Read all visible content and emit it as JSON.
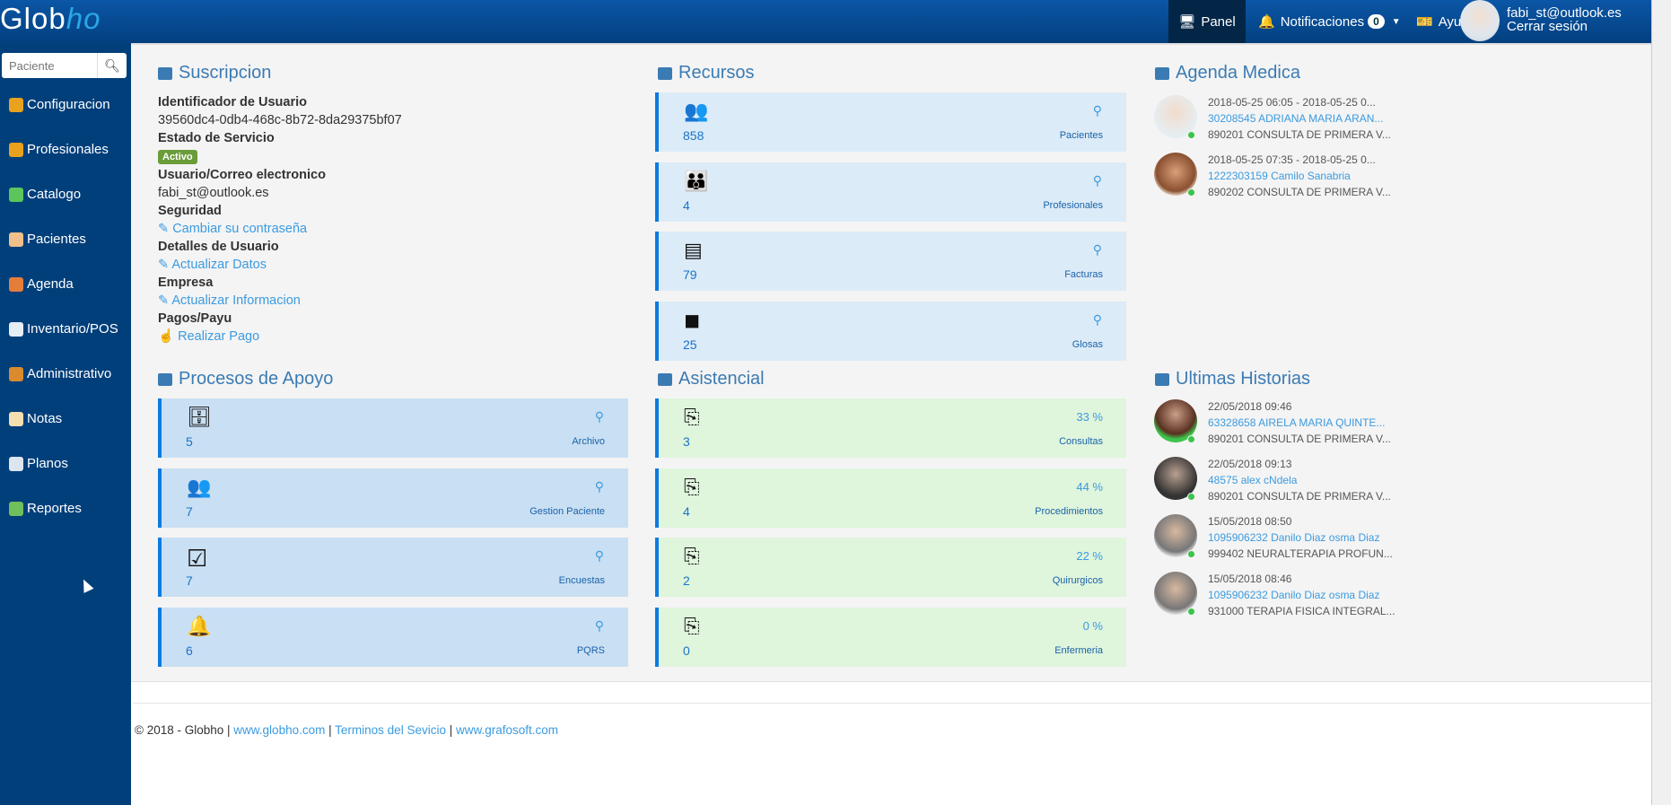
{
  "header": {
    "logo_text": "Globho",
    "nav": {
      "panel": "Panel",
      "notifications": "Notificaciones",
      "notifications_count": "0",
      "help": "Ayuda"
    },
    "user": {
      "email": "fabi_st@outlook.es",
      "logout": "Cerrar sesión"
    }
  },
  "sidebar": {
    "search_placeholder": "Paciente",
    "items": [
      {
        "label": "Configuracion",
        "icon": "gear-icon",
        "color": "#e8a21e"
      },
      {
        "label": "Profesionales",
        "icon": "users-icon",
        "color": "#e8a21e"
      },
      {
        "label": "Catalogo",
        "icon": "nodes-icon",
        "color": "#5cc65a"
      },
      {
        "label": "Pacientes",
        "icon": "user-icon",
        "color": "#f0c08a"
      },
      {
        "label": "Agenda",
        "icon": "calendar-icon",
        "color": "#e57d3a"
      },
      {
        "label": "Inventario/POS",
        "icon": "cart-icon",
        "color": "#e6eef5"
      },
      {
        "label": "Administrativo",
        "icon": "briefcase-icon",
        "color": "#d98b2e"
      },
      {
        "label": "Notas",
        "icon": "note-icon",
        "color": "#f3dfb0"
      },
      {
        "label": "Planos",
        "icon": "document-check-icon",
        "color": "#dde6ee"
      },
      {
        "label": "Reportes",
        "icon": "printer-icon",
        "color": "#6fbf5a"
      }
    ]
  },
  "suscripcion": {
    "title": "Suscripcion",
    "id_label": "Identificador de Usuario",
    "id_value": "39560dc4-0db4-468c-8b72-8da29375bf07",
    "estado_label": "Estado de Servicio",
    "estado_value": "Activo",
    "usuario_label": "Usuario/Correo electronico",
    "usuario_value": "fabi_st@outlook.es",
    "seguridad_label": "Seguridad",
    "seguridad_link": "Cambiar su contraseña",
    "detalles_label": "Detalles de Usuario",
    "detalles_link": "Actualizar Datos",
    "empresa_label": "Empresa",
    "empresa_link": "Actualizar Informacion",
    "pagos_label": "Pagos/Payu",
    "pagos_link": "Realizar Pago"
  },
  "recursos": {
    "title": "Recursos",
    "cards": [
      {
        "count": "858",
        "label": "Pacientes",
        "icon": "users-check-icon"
      },
      {
        "count": "4",
        "label": "Profesionales",
        "icon": "group-award-icon"
      },
      {
        "count": "79",
        "label": "Facturas",
        "icon": "invoice-icon"
      },
      {
        "count": "25",
        "label": "Glosas",
        "icon": "note-icon"
      }
    ]
  },
  "procesos": {
    "title": "Procesos de Apoyo",
    "cards": [
      {
        "count": "5",
        "label": "Archivo",
        "icon": "archive-icon"
      },
      {
        "count": "7",
        "label": "Gestion Paciente",
        "icon": "users-refresh-icon"
      },
      {
        "count": "7",
        "label": "Encuestas",
        "icon": "checkbox-icon"
      },
      {
        "count": "6",
        "label": "PQRS",
        "icon": "bell-icon"
      }
    ]
  },
  "asistencial": {
    "title": "Asistencial",
    "cards": [
      {
        "count": "3",
        "percent": "33 %",
        "label": "Consultas",
        "progress": 33
      },
      {
        "count": "4",
        "percent": "44 %",
        "label": "Procedimientos",
        "progress": 44
      },
      {
        "count": "2",
        "percent": "22 %",
        "label": "Quirurgicos",
        "progress": 22
      },
      {
        "count": "0",
        "percent": "0 %",
        "label": "Enfermeria",
        "progress": 0
      }
    ]
  },
  "agenda": {
    "title": "Agenda Medica",
    "items": [
      {
        "time": "2018-05-25 06:05 - 2018-05-25 0...",
        "patient": "30208545 ADRIANA MARIA ARAN...",
        "service": "890201 CONSULTA DE PRIMERA V..."
      },
      {
        "time": "2018-05-25 07:35 - 2018-05-25 0...",
        "patient": "1222303159 Camilo Sanabria",
        "service": "890202 CONSULTA DE PRIMERA V..."
      }
    ]
  },
  "historias": {
    "title": "Ultimas Historias",
    "items": [
      {
        "time": "22/05/2018 09:46",
        "patient": "63328658 AIRELA MARIA QUINTE...",
        "service": "890201 CONSULTA DE PRIMERA V..."
      },
      {
        "time": "22/05/2018 09:13",
        "patient": "48575 alex cNdela",
        "service": "890201 CONSULTA DE PRIMERA V..."
      },
      {
        "time": "15/05/2018 08:50",
        "patient": "1095906232 Danilo Diaz osma Diaz",
        "service": "999402 NEURALTERAPIA PROFUN..."
      },
      {
        "time": "15/05/2018 08:46",
        "patient": "1095906232 Danilo Diaz osma Diaz",
        "service": "931000 TERAPIA FISICA INTEGRAL..."
      }
    ]
  },
  "footer": {
    "copyright": "© 2018 - Globho |",
    "link1": "www.globho.com",
    "sep1": "|",
    "link2": "Terminos del Sevicio",
    "sep2": "|",
    "link3": "www.grafosoft.com"
  }
}
